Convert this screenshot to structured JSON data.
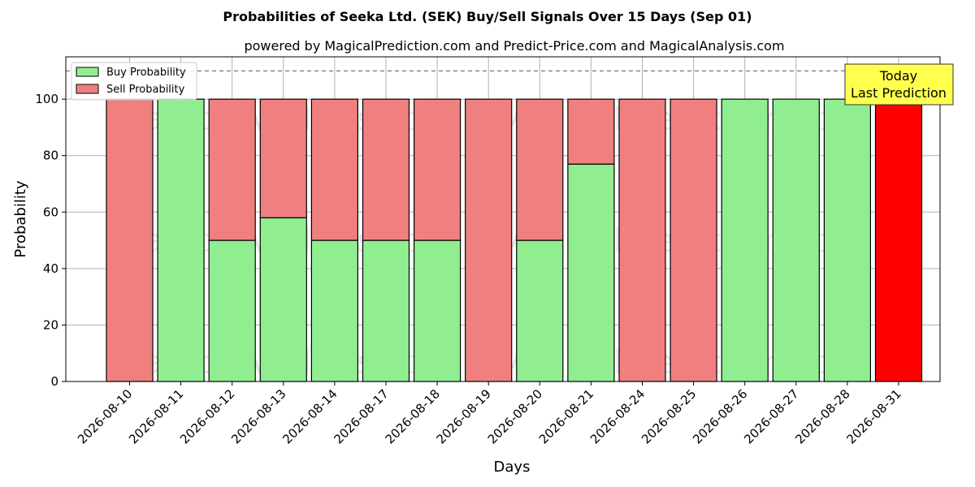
{
  "colors": {
    "buy": "#90ee90",
    "sell": "#f08080",
    "today_sell": "#ff0000",
    "annotation_bg": "#ffff4d"
  },
  "chart_data": {
    "type": "bar",
    "stacked": true,
    "title": "Probabilities of Seeka Ltd. (SEK) Buy/Sell Signals Over 15 Days (Sep 01)",
    "subtitle": "powered by MagicalPrediction.com and Predict-Price.com and MagicalAnalysis.com",
    "xlabel": "Days",
    "ylabel": "Probability",
    "ylim": [
      0,
      115
    ],
    "yticks": [
      0,
      20,
      40,
      60,
      80,
      100
    ],
    "grid": true,
    "legend_position": "top-left",
    "categories": [
      "2026-08-10",
      "2026-08-11",
      "2026-08-12",
      "2026-08-13",
      "2026-08-14",
      "2026-08-17",
      "2026-08-18",
      "2026-08-19",
      "2026-08-20",
      "2026-08-21",
      "2026-08-24",
      "2026-08-25",
      "2026-08-26",
      "2026-08-27",
      "2026-08-28",
      "2026-08-31"
    ],
    "series": [
      {
        "name": "Buy Probability",
        "values": [
          0,
          100,
          50,
          58,
          50,
          50,
          50,
          0,
          50,
          77,
          0,
          0,
          100,
          100,
          100,
          0
        ]
      },
      {
        "name": "Sell Probability",
        "values": [
          100,
          0,
          50,
          42,
          50,
          50,
          50,
          100,
          50,
          23,
          100,
          100,
          0,
          0,
          0,
          100
        ]
      }
    ],
    "reference_line": 110,
    "annotation": {
      "lines": [
        "Today",
        "Last Prediction"
      ]
    },
    "watermarks": [
      "MagicalAnalysis.com",
      "MagicalPrediction.com"
    ]
  }
}
